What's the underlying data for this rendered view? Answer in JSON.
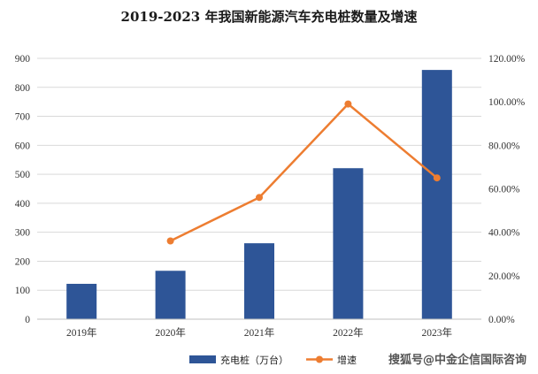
{
  "chart_data": {
    "type": "bar",
    "title": "2019-2023 年我国新能源汽车充电桩数量及增速",
    "categories": [
      "2019年",
      "2020年",
      "2021年",
      "2022年",
      "2023年"
    ],
    "ylim_left": [
      0,
      900
    ],
    "left_ticks": [
      "0",
      "100",
      "200",
      "300",
      "400",
      "500",
      "600",
      "700",
      "800",
      "900"
    ],
    "ylim_right": [
      0,
      1.2
    ],
    "right_ticks": [
      "0.00%",
      "20.00%",
      "40.00%",
      "60.00%",
      "80.00%",
      "100.00%",
      "120.00%"
    ],
    "grid": true,
    "legend_position": "bottom",
    "series": [
      {
        "name": "充电桩（万台）",
        "type": "bar",
        "axis": "left",
        "color": "#2e5597",
        "values": [
          122,
          167,
          262,
          521,
          860
        ]
      },
      {
        "name": "增速",
        "type": "line",
        "axis": "right",
        "color": "#ed7d31",
        "values": [
          null,
          0.36,
          0.56,
          0.99,
          0.65
        ]
      }
    ]
  },
  "watermark": "搜狐号@中金企信国际咨询"
}
